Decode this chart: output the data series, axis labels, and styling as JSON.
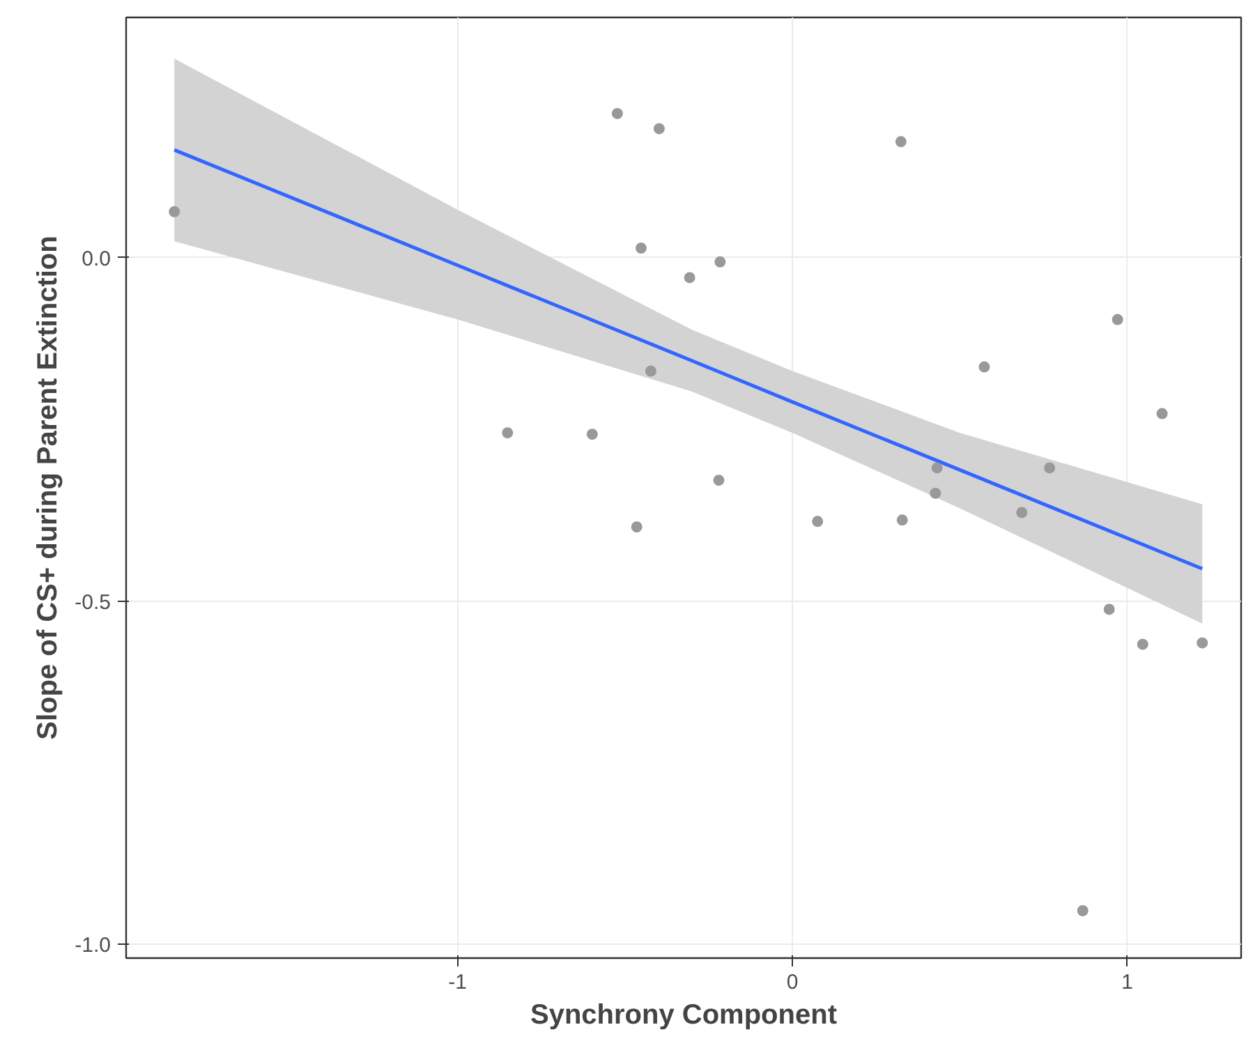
{
  "chart_data": {
    "type": "scatter",
    "xlabel": "Synchrony Component",
    "ylabel": "Slope of CS+ during Parent Extinction",
    "xlim": [
      -1.99,
      1.34
    ],
    "ylim": [
      -1.02,
      0.35
    ],
    "xticks": [
      -1,
      0,
      1
    ],
    "yticks": [
      {
        "value": -1,
        "label": "-1.0"
      },
      {
        "value": -0.5,
        "label": "-0.5"
      },
      {
        "value": 0,
        "label": "0.0"
      }
    ],
    "grid": true,
    "series": [
      {
        "type": "line",
        "marker": "none",
        "color": "#3366ff",
        "x": [
          -1.846,
          -1.0,
          -0.3,
          0.0,
          0.5,
          1.224
        ],
        "values": [
          0.157,
          -0.011,
          -0.15,
          -0.21,
          -0.309,
          -0.453
        ],
        "lower": [
          0.024,
          -0.09,
          -0.195,
          -0.255,
          -0.365,
          -0.533
        ],
        "upper": [
          0.29,
          0.07,
          -0.105,
          -0.165,
          -0.255,
          -0.359
        ]
      },
      {
        "marker": "circle",
        "color": "#999999",
        "x": [
          -1.846,
          -0.523,
          -0.398,
          0.324,
          -0.452,
          -0.216,
          -0.307,
          -0.423,
          -0.851,
          -0.598,
          -0.22,
          -0.465,
          0.075,
          0.328,
          0.432,
          0.427,
          0.573,
          0.685,
          0.768,
          0.971,
          1.104,
          0.946,
          1.046,
          1.224,
          0.867
        ],
        "values": [
          0.067,
          0.21,
          0.188,
          0.169,
          0.014,
          -0.006,
          -0.029,
          -0.165,
          -0.255,
          -0.257,
          -0.324,
          -0.392,
          -0.384,
          -0.382,
          -0.306,
          -0.343,
          -0.159,
          -0.371,
          -0.306,
          -0.09,
          -0.227,
          -0.512,
          -0.563,
          -0.561,
          -0.951
        ]
      }
    ]
  }
}
